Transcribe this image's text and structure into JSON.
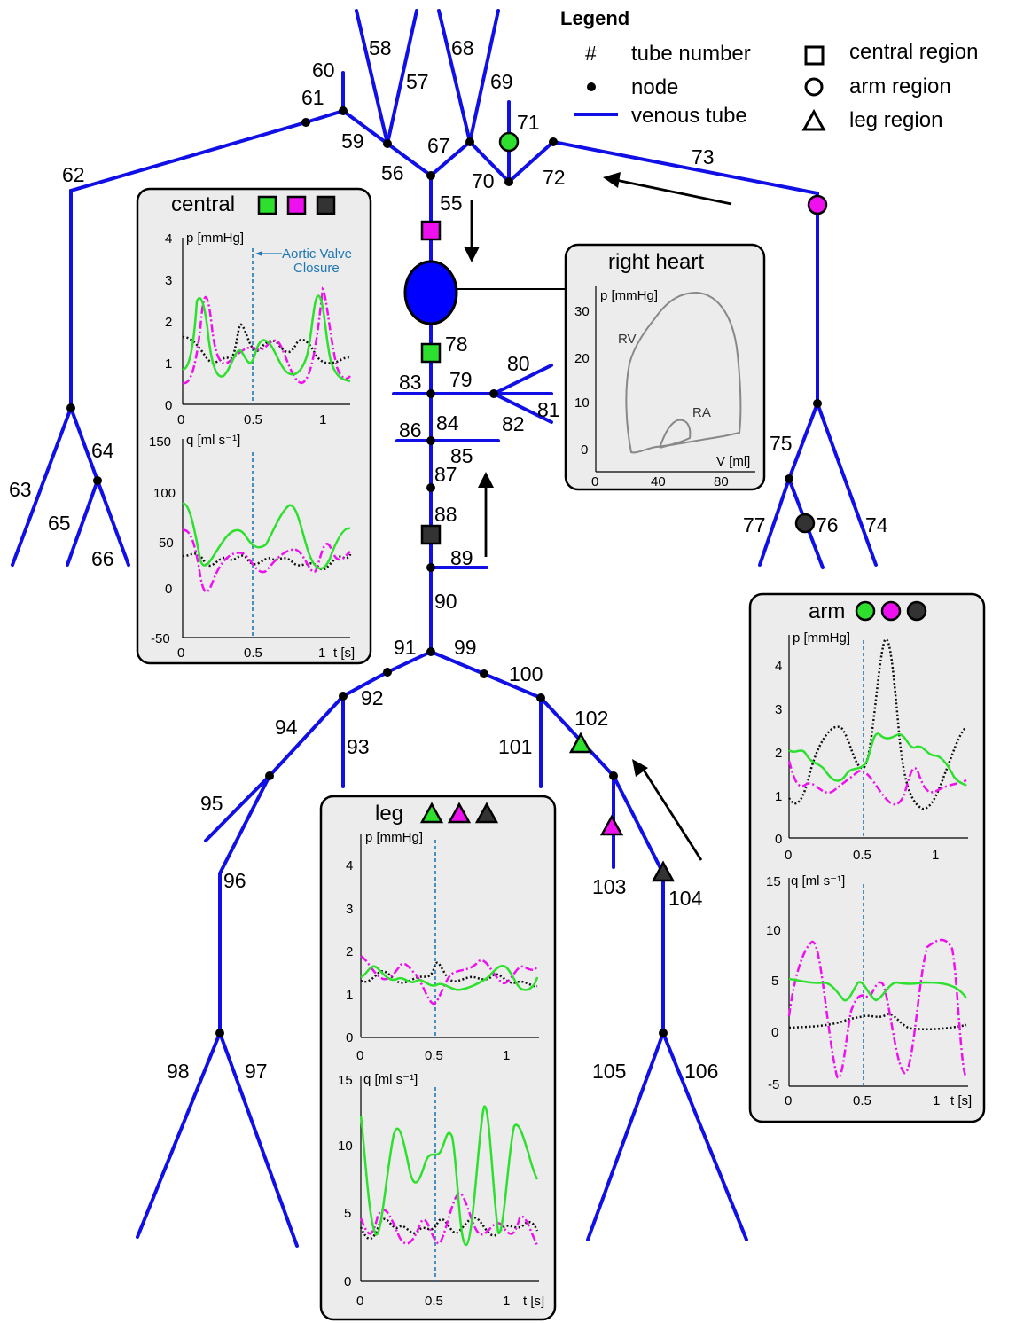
{
  "legend": {
    "title": "Legend",
    "hash_symbol": "#",
    "items": [
      {
        "symbol": "hash",
        "label": "tube number"
      },
      {
        "symbol": "dot",
        "label": "node"
      },
      {
        "symbol": "line",
        "label": "venous tube"
      },
      {
        "symbol": "square",
        "label": "central region"
      },
      {
        "symbol": "circle",
        "label": "arm region"
      },
      {
        "symbol": "triangle",
        "label": "leg region"
      }
    ]
  },
  "colors": {
    "tube": "#1010e6",
    "green": "#2de02d",
    "magenta": "#ee10ee",
    "black": "#111111",
    "vline": "#1f77b4",
    "heart": "#0000ff"
  },
  "tube_labels": [
    "55",
    "56",
    "57",
    "58",
    "59",
    "60",
    "61",
    "62",
    "63",
    "64",
    "65",
    "66",
    "67",
    "68",
    "69",
    "70",
    "71",
    "72",
    "73",
    "74",
    "75",
    "76",
    "77",
    "78",
    "79",
    "80",
    "81",
    "82",
    "83",
    "84",
    "85",
    "86",
    "87",
    "88",
    "89",
    "90",
    "91",
    "92",
    "93",
    "94",
    "95",
    "96",
    "97",
    "98",
    "99",
    "100",
    "101",
    "102",
    "103",
    "104",
    "105",
    "106"
  ],
  "central_panel": {
    "title": "central",
    "markers": [
      "green-square",
      "magenta-square",
      "black-square"
    ],
    "annotation": "Aortic Valve Closure",
    "p_axis_label": "p [mmHg]",
    "q_axis_label": "q [ml s⁻¹]",
    "t_axis_label": "t [s]",
    "p_ticks": [
      "4",
      "3",
      "2",
      "1",
      "0"
    ],
    "q_ticks": [
      "150",
      "100",
      "50",
      "0",
      "-50"
    ],
    "t_ticks_p": [
      "0",
      "0.5",
      "1"
    ],
    "t_ticks_q": [
      "0",
      "0.5",
      "1"
    ]
  },
  "heart_panel": {
    "title": "right heart",
    "p_axis_label": "p [mmHg]",
    "v_axis_label": "V [ml]",
    "p_ticks": [
      "30",
      "20",
      "10",
      "0"
    ],
    "v_ticks": [
      "0",
      "40",
      "80"
    ],
    "rv_label": "RV",
    "ra_label": "RA"
  },
  "arm_panel": {
    "title": "arm",
    "markers": [
      "green-circle",
      "magenta-circle",
      "black-circle"
    ],
    "p_axis_label": "p [mmHg]",
    "q_axis_label": "q [ml s⁻¹]",
    "t_axis_label": "t [s]",
    "p_ticks": [
      "4",
      "3",
      "2",
      "1",
      "0"
    ],
    "q_ticks": [
      "15",
      "10",
      "5",
      "0",
      "-5"
    ],
    "t_ticks_p": [
      "0",
      "0.5",
      "1"
    ],
    "t_ticks_q": [
      "0",
      "0.5",
      "1"
    ]
  },
  "leg_panel": {
    "title": "leg",
    "markers": [
      "green-triangle",
      "magenta-triangle",
      "black-triangle"
    ],
    "p_axis_label": "p [mmHg]",
    "q_axis_label": "q [ml s⁻¹]",
    "t_axis_label": "t [s]",
    "p_ticks": [
      "4",
      "3",
      "2",
      "1",
      "0"
    ],
    "q_ticks": [
      "15",
      "10",
      "5",
      "0"
    ],
    "t_ticks_p": [
      "0",
      "0.5",
      "1"
    ],
    "t_ticks_q": [
      "0",
      "0.5",
      "1"
    ]
  }
}
